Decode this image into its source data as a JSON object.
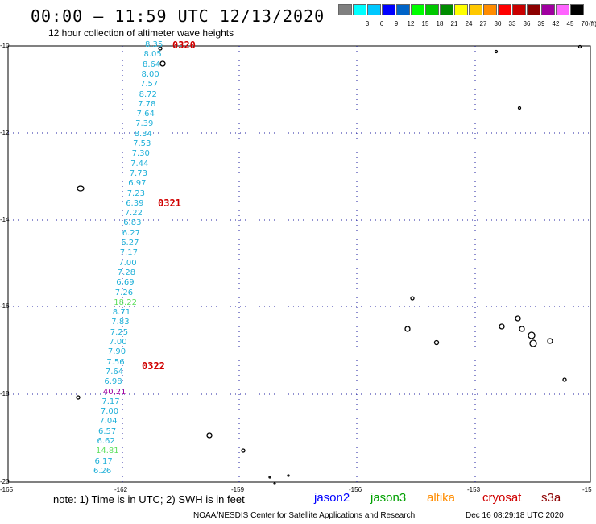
{
  "header": {
    "title": "00:00 – 11:59 UTC 12/13/2020",
    "subtitle": "12 hour collection of altimeter wave heights"
  },
  "color_scale": {
    "unit": "(ft)",
    "swatches": [
      {
        "label": "",
        "color": "#808080"
      },
      {
        "label": "3",
        "color": "#00ffff"
      },
      {
        "label": "6",
        "color": "#00c8ff"
      },
      {
        "label": "9",
        "color": "#0000ff"
      },
      {
        "label": "12",
        "color": "#0064c8"
      },
      {
        "label": "15",
        "color": "#00ff00"
      },
      {
        "label": "18",
        "color": "#00c800"
      },
      {
        "label": "21",
        "color": "#008c00"
      },
      {
        "label": "24",
        "color": "#ffff00"
      },
      {
        "label": "27",
        "color": "#ffc800"
      },
      {
        "label": "30",
        "color": "#ff8c00"
      },
      {
        "label": "33",
        "color": "#ff0000"
      },
      {
        "label": "36",
        "color": "#c80000"
      },
      {
        "label": "39",
        "color": "#8c0000"
      },
      {
        "label": "42",
        "color": "#a000a0"
      },
      {
        "label": "45",
        "color": "#ff64ff"
      },
      {
        "label": "70",
        "color": "#000000"
      }
    ]
  },
  "map": {
    "lat_labels": [
      "-10",
      "-12",
      "-14",
      "-16",
      "-18",
      "-20"
    ],
    "lon_labels": [
      "-165",
      "-162",
      "-159",
      "-156",
      "-153",
      "-15"
    ],
    "time_labels": [
      "0320",
      "0321",
      "0322"
    ],
    "wave_heights": [
      {
        "v": "8.35",
        "color": "#20b0d8"
      },
      {
        "v": "8.05",
        "color": "#20b0d8"
      },
      {
        "v": "8.64",
        "color": "#20b0d8"
      },
      {
        "v": "8.00",
        "color": "#20b0d8"
      },
      {
        "v": "7.57",
        "color": "#20b0d8"
      },
      {
        "v": "8.72",
        "color": "#20b0d8"
      },
      {
        "v": "7.78",
        "color": "#20b0d8"
      },
      {
        "v": "7.64",
        "color": "#20b0d8"
      },
      {
        "v": "7.39",
        "color": "#20b0d8"
      },
      {
        "v": "8.34",
        "color": "#20b0d8"
      },
      {
        "v": "7.53",
        "color": "#20b0d8"
      },
      {
        "v": "7.30",
        "color": "#20b0d8"
      },
      {
        "v": "7.44",
        "color": "#20b0d8"
      },
      {
        "v": "7.73",
        "color": "#20b0d8"
      },
      {
        "v": "6.97",
        "color": "#20b0d8"
      },
      {
        "v": "7.23",
        "color": "#20b0d8"
      },
      {
        "v": "6.39",
        "color": "#20b0d8"
      },
      {
        "v": "7.22",
        "color": "#20b0d8"
      },
      {
        "v": "6.83",
        "color": "#20b0d8"
      },
      {
        "v": "6.27",
        "color": "#20b0d8"
      },
      {
        "v": "6.27",
        "color": "#20b0d8"
      },
      {
        "v": "7.17",
        "color": "#20b0d8"
      },
      {
        "v": "7.00",
        "color": "#20b0d8"
      },
      {
        "v": "7.28",
        "color": "#20b0d8"
      },
      {
        "v": "6.69",
        "color": "#20b0d8"
      },
      {
        "v": "7.26",
        "color": "#20b0d8"
      },
      {
        "v": "18.22",
        "color": "#60e060"
      },
      {
        "v": "8.71",
        "color": "#20b0d8"
      },
      {
        "v": "7.83",
        "color": "#20b0d8"
      },
      {
        "v": "7.25",
        "color": "#20b0d8"
      },
      {
        "v": "7.00",
        "color": "#20b0d8"
      },
      {
        "v": "7.90",
        "color": "#20b0d8"
      },
      {
        "v": "7.56",
        "color": "#20b0d8"
      },
      {
        "v": "7.64",
        "color": "#20b0d8"
      },
      {
        "v": "6.98",
        "color": "#20b0d8"
      },
      {
        "v": "40.21",
        "color": "#a000a0"
      },
      {
        "v": "7.17",
        "color": "#20b0d8"
      },
      {
        "v": "7.00",
        "color": "#20b0d8"
      },
      {
        "v": "7.04",
        "color": "#20b0d8"
      },
      {
        "v": "6.57",
        "color": "#20b0d8"
      },
      {
        "v": "6.62",
        "color": "#20b0d8"
      },
      {
        "v": "14.81",
        "color": "#60e060"
      },
      {
        "v": "6.17",
        "color": "#20b0d8"
      },
      {
        "v": "6.26",
        "color": "#20b0d8"
      }
    ]
  },
  "footer": {
    "note": "note:  1) Time is in UTC; 2) SWH is in feet",
    "satellites": [
      {
        "name": "jason2",
        "color": "#0000ff"
      },
      {
        "name": "jason3",
        "color": "#00a000"
      },
      {
        "name": "altika",
        "color": "#ff8c00"
      },
      {
        "name": "cryosat",
        "color": "#d00000"
      },
      {
        "name": "s3a",
        "color": "#8c0000"
      }
    ],
    "credit": "NOAA/NESDIS Center for Satellite Applications and Research",
    "timestamp": "Dec 16 08:29:18 UTC 2020"
  }
}
